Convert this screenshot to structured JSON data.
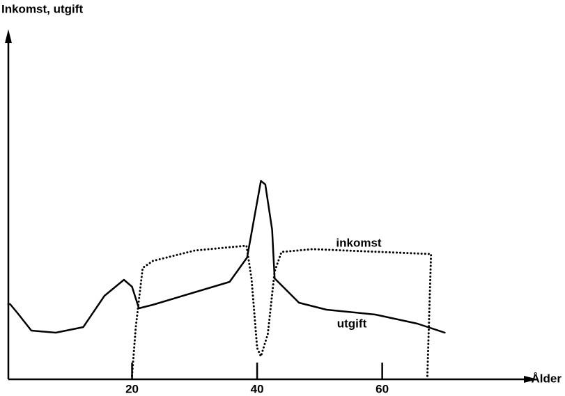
{
  "chart_data": {
    "type": "line",
    "ylabel": "Inkomst, utgift",
    "xlabel": "Ålder",
    "xlim": [
      0,
      88
    ],
    "ylim": [
      0,
      500
    ],
    "xticks": [
      20,
      40,
      60
    ],
    "annotations": [
      "inkomst",
      "utgift"
    ],
    "series": [
      {
        "name": "utgift",
        "color": "#000000",
        "style": "solid",
        "x": [
          0.2,
          0.5,
          1.7,
          3.9,
          7.8,
          12.2,
          15.6,
          18.7,
          20,
          21.1,
          23.3,
          30,
          35.6,
          38.4,
          39.4,
          40.6,
          41.3,
          42.4,
          42.8,
          46.7,
          51.1,
          58.9,
          65.6,
          70
        ],
        "values": [
          108,
          108,
          95,
          70,
          67,
          75,
          120,
          143,
          133,
          102,
          107,
          125,
          140,
          175,
          225,
          285,
          280,
          215,
          145,
          110,
          100,
          93,
          80,
          67
        ]
      },
      {
        "name": "inkomst",
        "color": "#000000",
        "style": "dotted",
        "x": [
          20,
          20.6,
          21.7,
          23.3,
          30,
          38.3,
          39.1,
          40,
          40.6,
          41.7,
          42.8,
          43.9,
          48.9,
          67.8,
          67.2
        ],
        "values": [
          5,
          75,
          160,
          170,
          185,
          192,
          145,
          45,
          33,
          65,
          155,
          183,
          187,
          180,
          0
        ]
      }
    ]
  }
}
